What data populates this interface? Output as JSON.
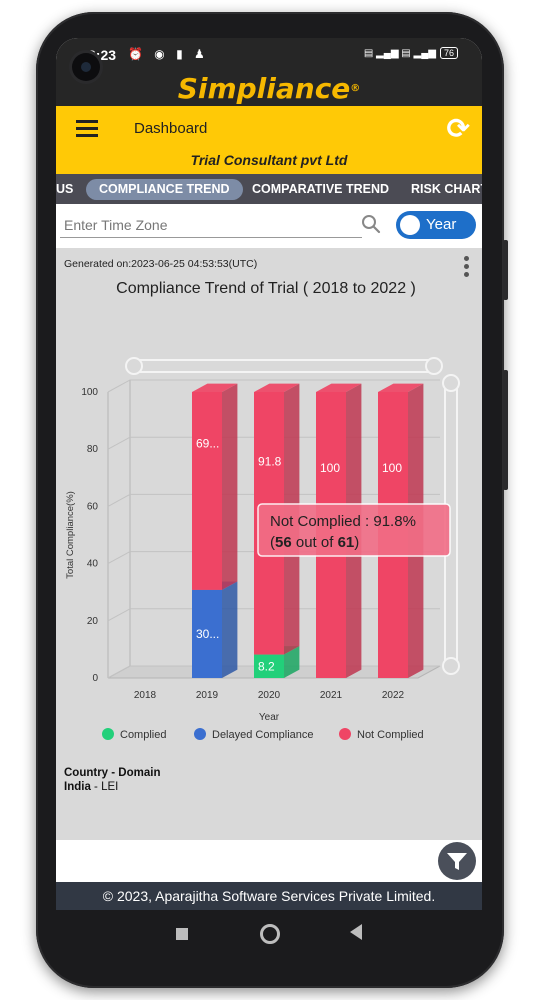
{
  "status": {
    "time": "3:23",
    "battery": "76"
  },
  "brand": {
    "name": "Simpliance",
    "reg": "®"
  },
  "header": {
    "title": "Dashboard",
    "company": "Trial Consultant pvt Ltd"
  },
  "tabs": [
    {
      "label": "US"
    },
    {
      "label": "COMPLIANCE TREND",
      "active": true
    },
    {
      "label": "COMPARATIVE TREND"
    },
    {
      "label": "RISK CHART"
    }
  ],
  "filters": {
    "timezone_placeholder": "Enter Time Zone",
    "toggle_label": "Year"
  },
  "report": {
    "generated": "Generated on:2023-06-25 04:53:53(UTC)"
  },
  "chart_data": {
    "type": "bar",
    "stacked": true,
    "title": "Compliance Trend of Trial ( 2018 to 2022 )",
    "xlabel": "Year",
    "ylabel": "Total Compliance(%)",
    "ylim": [
      0,
      100
    ],
    "yticks": [
      0,
      20,
      40,
      60,
      80,
      100
    ],
    "categories": [
      "2018",
      "2019",
      "2020",
      "2021",
      "2022"
    ],
    "series": [
      {
        "name": "Complied",
        "color": "#22d07a",
        "values": [
          0,
          0,
          8.2,
          0,
          0
        ],
        "labels": [
          "",
          "",
          "8.2",
          "",
          ""
        ]
      },
      {
        "name": "Delayed Compliance",
        "color": "#3b6fd0",
        "values": [
          0,
          30.8,
          0,
          0,
          0
        ],
        "labels": [
          "",
          "30...",
          "",
          "",
          ""
        ]
      },
      {
        "name": "Not Complied",
        "color": "#ef4565",
        "values": [
          0,
          69.2,
          91.8,
          100,
          100
        ],
        "labels": [
          "",
          "69...",
          "91.8",
          "100",
          "100"
        ]
      }
    ],
    "legend": "bottom",
    "tooltip": {
      "label": "Not Complied : 91.8%",
      "open": "(",
      "count": "56",
      "mid": " out of ",
      "total": "61",
      "close": ")"
    }
  },
  "domain": {
    "heading": "Country - Domain",
    "country": "India",
    "sep": " - ",
    "domain": "LEI"
  },
  "footer": {
    "text": "© 2023, Aparajitha Software Services Private Limited."
  }
}
